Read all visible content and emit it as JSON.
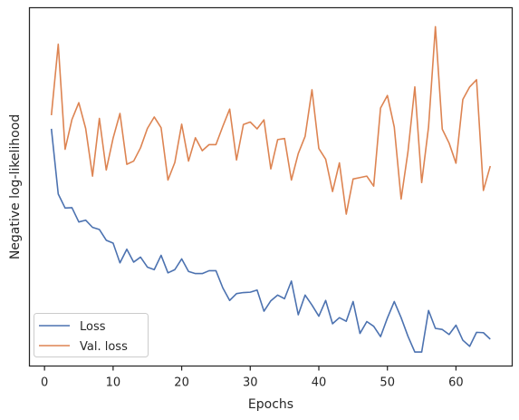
{
  "chart_data": {
    "type": "line",
    "title": "",
    "xlabel": "Epochs",
    "ylabel": "Negative log-likelihood",
    "xlim": [
      -2.2,
      68.2
    ],
    "ylim": [
      0.0,
      1.0
    ],
    "xticks": [
      0,
      10,
      20,
      30,
      40,
      50,
      60
    ],
    "yticks_shown": false,
    "grid": false,
    "legend_position": "bottom-left",
    "series": [
      {
        "name": "Loss",
        "color": "#4c72b0",
        "x": [
          1,
          2,
          3,
          4,
          5,
          6,
          7,
          8,
          9,
          10,
          11,
          12,
          13,
          14,
          15,
          16,
          17,
          18,
          19,
          20,
          21,
          22,
          23,
          24,
          25,
          26,
          27,
          28,
          29,
          30,
          31,
          32,
          33,
          34,
          35,
          36,
          37,
          38,
          39,
          40,
          41,
          42,
          43,
          44,
          45,
          46,
          47,
          48,
          49,
          50,
          51,
          52,
          53,
          54,
          55,
          56,
          57,
          58,
          59,
          60,
          61,
          62,
          63,
          64,
          65
        ],
        "values": [
          0.662,
          0.48,
          0.441,
          0.442,
          0.402,
          0.407,
          0.387,
          0.381,
          0.351,
          0.343,
          0.288,
          0.326,
          0.29,
          0.304,
          0.276,
          0.269,
          0.309,
          0.26,
          0.269,
          0.299,
          0.264,
          0.258,
          0.258,
          0.266,
          0.266,
          0.218,
          0.183,
          0.202,
          0.205,
          0.206,
          0.212,
          0.153,
          0.182,
          0.198,
          0.188,
          0.237,
          0.143,
          0.198,
          0.17,
          0.139,
          0.183,
          0.118,
          0.135,
          0.125,
          0.18,
          0.091,
          0.124,
          0.111,
          0.082,
          0.134,
          0.18,
          0.135,
          0.083,
          0.039,
          0.039,
          0.155,
          0.105,
          0.102,
          0.088,
          0.114,
          0.072,
          0.055,
          0.094,
          0.093,
          0.075
        ]
      },
      {
        "name": "Val. loss",
        "color": "#dd8452",
        "x": [
          1,
          2,
          3,
          4,
          5,
          6,
          7,
          8,
          9,
          10,
          11,
          12,
          13,
          14,
          15,
          16,
          17,
          18,
          19,
          20,
          21,
          22,
          23,
          24,
          25,
          26,
          27,
          28,
          29,
          30,
          31,
          32,
          33,
          34,
          35,
          36,
          37,
          38,
          39,
          40,
          41,
          42,
          43,
          44,
          45,
          46,
          47,
          48,
          49,
          50,
          51,
          52,
          53,
          54,
          55,
          56,
          57,
          58,
          59,
          60,
          61,
          62,
          63,
          64,
          65
        ],
        "values": [
          0.7,
          0.898,
          0.605,
          0.688,
          0.735,
          0.663,
          0.53,
          0.691,
          0.547,
          0.636,
          0.705,
          0.563,
          0.572,
          0.609,
          0.663,
          0.695,
          0.665,
          0.519,
          0.568,
          0.675,
          0.572,
          0.637,
          0.601,
          0.618,
          0.618,
          0.669,
          0.717,
          0.575,
          0.674,
          0.681,
          0.662,
          0.687,
          0.55,
          0.632,
          0.635,
          0.519,
          0.593,
          0.641,
          0.771,
          0.607,
          0.577,
          0.487,
          0.567,
          0.424,
          0.522,
          0.526,
          0.53,
          0.502,
          0.72,
          0.755,
          0.667,
          0.466,
          0.598,
          0.779,
          0.512,
          0.667,
          0.947,
          0.661,
          0.622,
          0.566,
          0.744,
          0.779,
          0.799,
          0.49,
          0.558
        ]
      }
    ]
  }
}
